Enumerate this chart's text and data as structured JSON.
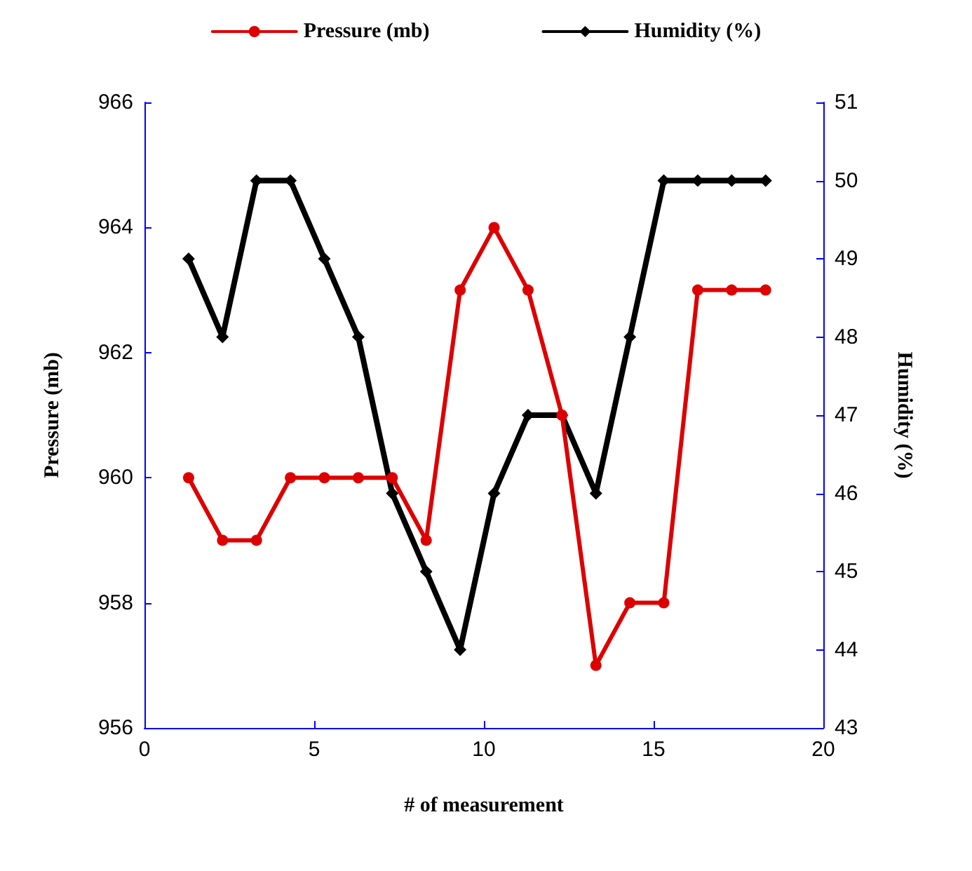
{
  "chart_data": {
    "type": "line",
    "xlabel": "# of measurement",
    "ylabel": "Pressure (mb)",
    "y2label": "Humidity (%)",
    "x": [
      1.3,
      2.3,
      3.3,
      4.3,
      5.3,
      6.3,
      7.3,
      8.3,
      9.3,
      10.3,
      11.3,
      12.3,
      13.3,
      14.3,
      15.3,
      16.3,
      17.3,
      18.3
    ],
    "series": [
      {
        "name": "Pressure (mb)",
        "color": "#dd0000",
        "marker": "circle",
        "values": [
          960,
          959,
          959,
          960,
          960,
          960,
          960,
          959,
          963,
          964,
          963,
          961,
          957,
          958,
          958,
          963,
          963,
          963
        ]
      },
      {
        "name": "Humidity (%)",
        "color": "#000000",
        "marker": "diamond",
        "axis": "y2",
        "values": [
          49,
          48,
          50,
          50,
          49,
          48,
          46,
          45,
          44,
          46,
          47,
          47,
          46,
          48,
          50,
          50,
          50,
          50
        ]
      }
    ],
    "xlim": [
      0,
      20
    ],
    "xticks": [
      0,
      5,
      10,
      15,
      20
    ],
    "ylim": [
      956,
      966
    ],
    "yticks": [
      956,
      958,
      960,
      962,
      964,
      966
    ],
    "y2lim": [
      43,
      51
    ],
    "y2ticks": [
      43,
      44,
      45,
      46,
      47,
      48,
      49,
      50,
      51
    ],
    "grid": false,
    "legend": "top",
    "line_style": "solid"
  }
}
